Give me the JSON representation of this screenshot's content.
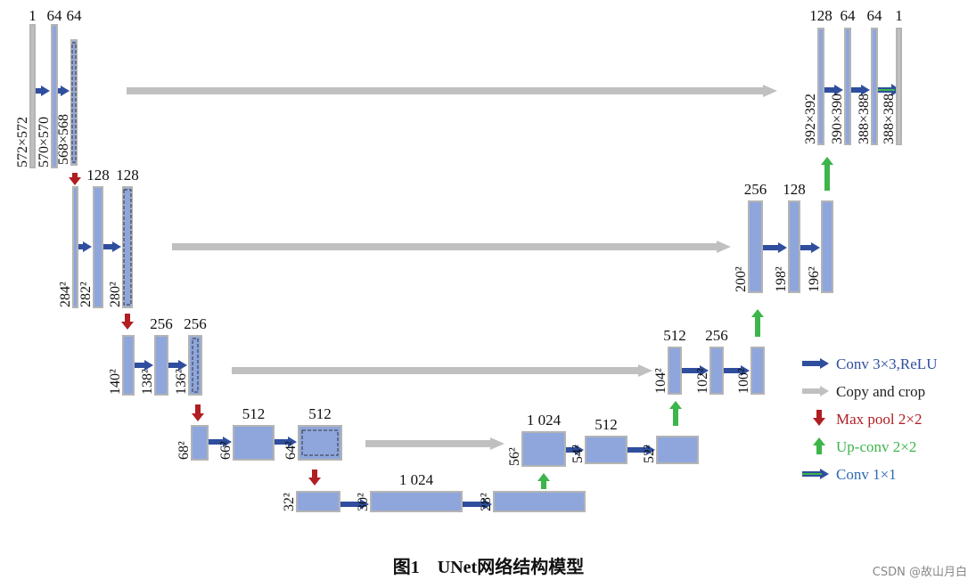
{
  "blocks": [
    {
      "channels": "1",
      "size": "572×572"
    },
    {
      "channels": "64",
      "size": "570×570"
    },
    {
      "channels": "64",
      "size": "568×568"
    },
    {
      "size": "284²"
    },
    {
      "channels": "128",
      "size": "282²"
    },
    {
      "channels": "128",
      "size": "280²"
    },
    {
      "size": "140²"
    },
    {
      "channels": "256",
      "size": "138²"
    },
    {
      "channels": "256",
      "size": "136²"
    },
    {
      "size": "68²"
    },
    {
      "channels": "512",
      "size": "66²"
    },
    {
      "channels": "512",
      "size": "64²"
    },
    {
      "size": "32²"
    },
    {
      "channels": "1 024",
      "size": "30²"
    },
    {
      "size": "28²"
    },
    {
      "channels": "1 024",
      "size": "56²"
    },
    {
      "channels": "512",
      "size": "54²"
    },
    {
      "size": "52²"
    },
    {
      "channels": "512",
      "size": "104²"
    },
    {
      "channels": "256",
      "size": "102²"
    },
    {
      "size": "100²"
    },
    {
      "channels": "256",
      "size": "200²"
    },
    {
      "channels": "128",
      "size": "198²"
    },
    {
      "size": "196²"
    },
    {
      "channels": "128",
      "size": "392×392"
    },
    {
      "channels": "64",
      "size": "390×390"
    },
    {
      "channels": "64",
      "size": "388×388"
    },
    {
      "channels": "1",
      "size": "388×388"
    }
  ],
  "legend": [
    {
      "label": "Conv 3×3,ReLU"
    },
    {
      "label": "Copy and crop"
    },
    {
      "label": "Max pool 2×2"
    },
    {
      "label": "Up-conv 2×2"
    },
    {
      "label": "Conv 1×1"
    }
  ],
  "caption": "图1　UNet网络结构模型",
  "watermark": "CSDN @故山月白"
}
